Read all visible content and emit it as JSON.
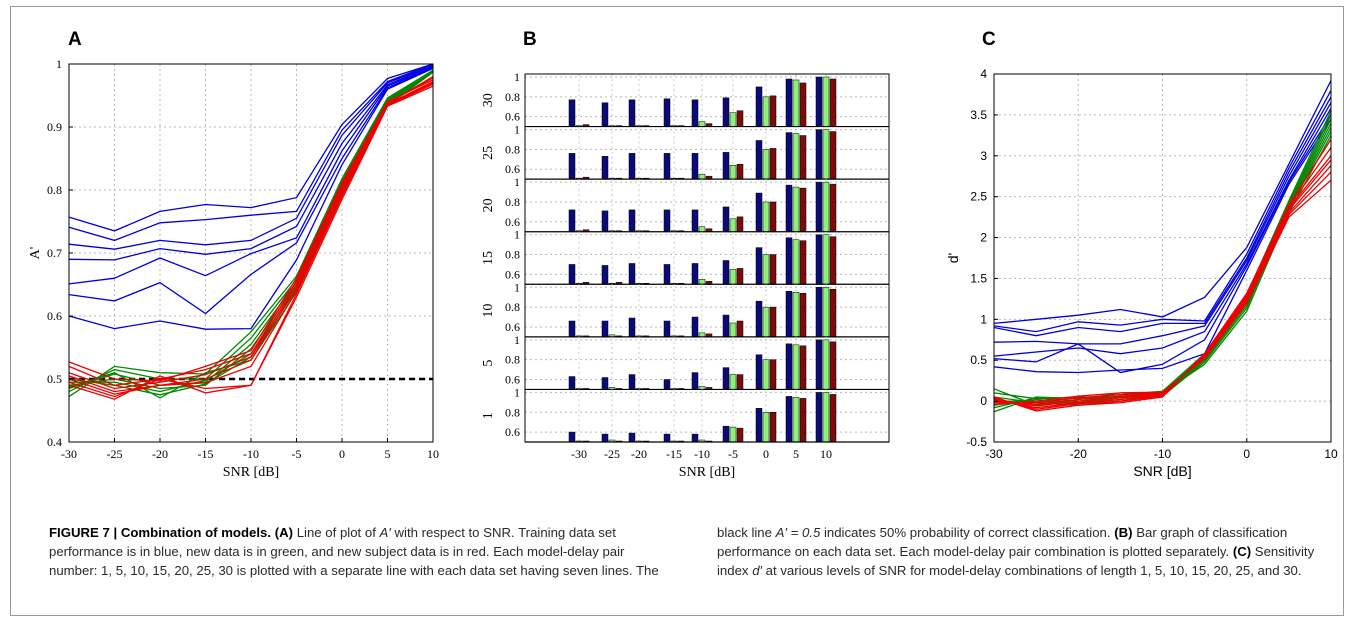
{
  "caption": {
    "figure_label": "FIGURE 7 | Combination of models",
    "a_label": "(A)",
    "a_text_1": " Line of plot of ",
    "a_sym": "A′",
    "a_text_2": " with respect to SNR. Training data set performance is in blue, new data is in green, and new subject data is in red. Each model-delay pair number: 1, 5, 10, 15, 20, 25, 30 is plotted with a separate line with each data set having seven lines. The black line ",
    "a_eq": "A′ = 0.5",
    "a_text_3": " indicates 50% probability of correct classification. ",
    "b_label": "(B)",
    "b_text": " Bar graph of classification performance on each data set. Each model-delay pair combination is plotted separately. ",
    "c_label": "(C)",
    "c_text_1": " Sensitivity index ",
    "c_sym": "d′",
    "c_text_2": " at various levels of SNR for model-delay combinations of length 1, 5, 10, 15, 20, 25, and 30."
  },
  "colors": {
    "training": "#0000dd",
    "new_data": "#008800",
    "new_subject": "#ee0000",
    "bar_blue": "#0b0b78",
    "bar_green": "#8cf07a",
    "bar_red": "#7a0c0c"
  },
  "chart_data": [
    {
      "panel": "A",
      "type": "line",
      "xlabel": "SNR [dB]",
      "ylabel": "A'",
      "x": [
        -30,
        -25,
        -20,
        -15,
        -10,
        -5,
        0,
        5,
        10
      ],
      "xlim": [
        -30,
        10
      ],
      "ylim": [
        0.4,
        1
      ],
      "xticks": [
        -30,
        -25,
        -20,
        -15,
        -10,
        -5,
        0,
        5,
        10
      ],
      "yticks": [
        0.4,
        0.5,
        0.6,
        0.7,
        0.8,
        0.9,
        1
      ],
      "grid": true,
      "reference_line": 0.5,
      "series": [
        {
          "group": "training",
          "values": [
            0.757,
            0.735,
            0.766,
            0.777,
            0.772,
            0.788,
            0.904,
            0.977,
            1.0
          ]
        },
        {
          "group": "training",
          "values": [
            0.741,
            0.72,
            0.748,
            0.753,
            0.76,
            0.766,
            0.895,
            0.972,
            1.0
          ]
        },
        {
          "group": "training",
          "values": [
            0.714,
            0.706,
            0.72,
            0.713,
            0.72,
            0.755,
            0.887,
            0.97,
            0.998
          ]
        },
        {
          "group": "training",
          "values": [
            0.69,
            0.689,
            0.707,
            0.698,
            0.707,
            0.742,
            0.874,
            0.967,
            0.997
          ]
        },
        {
          "group": "training",
          "values": [
            0.651,
            0.66,
            0.692,
            0.664,
            0.699,
            0.724,
            0.862,
            0.965,
            0.995
          ]
        },
        {
          "group": "training",
          "values": [
            0.634,
            0.624,
            0.653,
            0.604,
            0.666,
            0.716,
            0.85,
            0.962,
            0.994
          ]
        },
        {
          "group": "training",
          "values": [
            0.6,
            0.58,
            0.592,
            0.579,
            0.58,
            0.689,
            0.84,
            0.96,
            0.993
          ]
        },
        {
          "group": "new_data",
          "values": [
            0.472,
            0.52,
            0.51,
            0.508,
            0.575,
            0.663,
            0.818,
            0.946,
            0.99
          ]
        },
        {
          "group": "new_data",
          "values": [
            0.48,
            0.515,
            0.5,
            0.5,
            0.565,
            0.658,
            0.814,
            0.944,
            0.99
          ]
        },
        {
          "group": "new_data",
          "values": [
            0.485,
            0.508,
            0.49,
            0.495,
            0.555,
            0.654,
            0.81,
            0.942,
            0.989
          ]
        },
        {
          "group": "new_data",
          "values": [
            0.49,
            0.5,
            0.485,
            0.49,
            0.548,
            0.65,
            0.806,
            0.94,
            0.989
          ]
        },
        {
          "group": "new_data",
          "values": [
            0.495,
            0.495,
            0.48,
            0.498,
            0.54,
            0.646,
            0.802,
            0.938,
            0.988
          ]
        },
        {
          "group": "new_data",
          "values": [
            0.5,
            0.49,
            0.475,
            0.492,
            0.535,
            0.642,
            0.798,
            0.936,
            0.988
          ]
        },
        {
          "group": "new_data",
          "values": [
            0.487,
            0.51,
            0.47,
            0.51,
            0.53,
            0.638,
            0.794,
            0.934,
            0.987
          ]
        },
        {
          "group": "new_subject",
          "values": [
            0.527,
            0.5,
            0.497,
            0.52,
            0.545,
            0.66,
            0.812,
            0.94,
            0.975
          ]
        },
        {
          "group": "new_subject",
          "values": [
            0.52,
            0.49,
            0.5,
            0.515,
            0.54,
            0.655,
            0.808,
            0.938,
            0.978
          ]
        },
        {
          "group": "new_subject",
          "values": [
            0.51,
            0.485,
            0.495,
            0.507,
            0.535,
            0.65,
            0.805,
            0.937,
            0.98
          ]
        },
        {
          "group": "new_subject",
          "values": [
            0.505,
            0.48,
            0.49,
            0.5,
            0.53,
            0.645,
            0.8,
            0.936,
            0.972
          ]
        },
        {
          "group": "new_subject",
          "values": [
            0.5,
            0.476,
            0.49,
            0.494,
            0.52,
            0.64,
            0.795,
            0.935,
            0.97
          ]
        },
        {
          "group": "new_subject",
          "values": [
            0.495,
            0.472,
            0.5,
            0.485,
            0.49,
            0.635,
            0.79,
            0.934,
            0.968
          ]
        },
        {
          "group": "new_subject",
          "values": [
            0.49,
            0.468,
            0.505,
            0.478,
            0.49,
            0.63,
            0.785,
            0.933,
            0.965
          ]
        }
      ]
    },
    {
      "panel": "B",
      "type": "bar",
      "xlabel": "SNR [dB]",
      "x": [
        -30,
        -25,
        -20,
        -15,
        -10,
        -5,
        0,
        5,
        10
      ],
      "xticks": [
        "-30",
        "-25",
        "-20",
        "-15",
        "-10",
        "-5",
        "0",
        "5",
        "10"
      ],
      "yticks": [
        "1",
        "0.8",
        "0.6"
      ],
      "ylim": [
        0.5,
        1
      ],
      "row_labels": [
        "30",
        "25",
        "20",
        "15",
        "10",
        "5",
        "1"
      ],
      "series_groups": [
        "training",
        "new_data",
        "new_subject"
      ],
      "rows": [
        {
          "label": "30",
          "training": [
            0.77,
            0.74,
            0.77,
            0.78,
            0.77,
            0.79,
            0.9,
            0.98,
            1.0
          ],
          "new_data": [
            0.5,
            0.5,
            0.5,
            0.5,
            0.55,
            0.64,
            0.8,
            0.97,
            1.0
          ],
          "new_subject": [
            0.52,
            0.5,
            0.5,
            0.51,
            0.53,
            0.66,
            0.81,
            0.94,
            0.98
          ]
        },
        {
          "label": "25",
          "training": [
            0.76,
            0.73,
            0.76,
            0.76,
            0.76,
            0.77,
            0.89,
            0.97,
            1.0
          ],
          "new_data": [
            0.5,
            0.5,
            0.5,
            0.5,
            0.55,
            0.64,
            0.8,
            0.96,
            1.0
          ],
          "new_subject": [
            0.52,
            0.5,
            0.5,
            0.51,
            0.53,
            0.65,
            0.81,
            0.94,
            0.98
          ]
        },
        {
          "label": "20",
          "training": [
            0.72,
            0.71,
            0.72,
            0.72,
            0.72,
            0.75,
            0.89,
            0.97,
            1.0
          ],
          "new_data": [
            0.5,
            0.5,
            0.5,
            0.5,
            0.55,
            0.63,
            0.8,
            0.95,
            1.0
          ],
          "new_subject": [
            0.52,
            0.5,
            0.5,
            0.51,
            0.53,
            0.65,
            0.8,
            0.94,
            0.98
          ]
        },
        {
          "label": "15",
          "training": [
            0.7,
            0.69,
            0.71,
            0.7,
            0.71,
            0.74,
            0.87,
            0.97,
            1.0
          ],
          "new_data": [
            0.5,
            0.5,
            0.5,
            0.5,
            0.55,
            0.65,
            0.8,
            0.95,
            1.0
          ],
          "new_subject": [
            0.52,
            0.52,
            0.5,
            0.51,
            0.53,
            0.66,
            0.8,
            0.94,
            0.98
          ]
        },
        {
          "label": "10",
          "training": [
            0.66,
            0.66,
            0.69,
            0.66,
            0.7,
            0.72,
            0.86,
            0.96,
            1.0
          ],
          "new_data": [
            0.5,
            0.52,
            0.5,
            0.5,
            0.54,
            0.64,
            0.8,
            0.95,
            1.0
          ],
          "new_subject": [
            0.5,
            0.5,
            0.5,
            0.5,
            0.53,
            0.66,
            0.8,
            0.94,
            0.98
          ]
        },
        {
          "label": "5",
          "training": [
            0.63,
            0.62,
            0.65,
            0.6,
            0.67,
            0.72,
            0.85,
            0.96,
            1.0
          ],
          "new_data": [
            0.5,
            0.52,
            0.5,
            0.5,
            0.53,
            0.65,
            0.8,
            0.95,
            1.0
          ],
          "new_subject": [
            0.5,
            0.5,
            0.5,
            0.5,
            0.52,
            0.65,
            0.8,
            0.94,
            0.98
          ]
        },
        {
          "label": "1",
          "training": [
            0.6,
            0.58,
            0.59,
            0.58,
            0.58,
            0.66,
            0.84,
            0.96,
            1.0
          ],
          "new_data": [
            0.5,
            0.52,
            0.5,
            0.5,
            0.52,
            0.65,
            0.8,
            0.95,
            1.0
          ],
          "new_subject": [
            0.5,
            0.5,
            0.5,
            0.5,
            0.5,
            0.64,
            0.8,
            0.94,
            0.98
          ]
        }
      ]
    },
    {
      "panel": "C",
      "type": "line",
      "xlabel": "SNR [dB]",
      "ylabel": "d'",
      "x": [
        -30,
        -25,
        -20,
        -15,
        -10,
        -5,
        0,
        5,
        10
      ],
      "xlim": [
        -30,
        10
      ],
      "ylim": [
        -0.5,
        4
      ],
      "xticks": [
        -30,
        -20,
        -10,
        0,
        10
      ],
      "yticks": [
        -0.5,
        0,
        0.5,
        1,
        1.5,
        2,
        2.5,
        3,
        3.5,
        4
      ],
      "grid": true,
      "series": [
        {
          "group": "training",
          "values": [
            0.95,
            1.0,
            1.05,
            1.12,
            1.03,
            1.27,
            1.88,
            2.9,
            3.92
          ]
        },
        {
          "group": "training",
          "values": [
            0.92,
            0.85,
            0.97,
            0.93,
            1.0,
            0.98,
            1.8,
            2.85,
            3.8
          ]
        },
        {
          "group": "training",
          "values": [
            0.9,
            0.8,
            0.9,
            0.85,
            0.95,
            0.95,
            1.75,
            2.8,
            3.72
          ]
        },
        {
          "group": "training",
          "values": [
            0.72,
            0.73,
            0.7,
            0.7,
            0.8,
            0.92,
            1.72,
            2.75,
            3.65
          ]
        },
        {
          "group": "training",
          "values": [
            0.55,
            0.6,
            0.65,
            0.58,
            0.65,
            0.85,
            1.68,
            2.7,
            3.58
          ]
        },
        {
          "group": "training",
          "values": [
            0.52,
            0.48,
            0.7,
            0.35,
            0.45,
            0.75,
            1.65,
            2.68,
            3.5
          ]
        },
        {
          "group": "training",
          "values": [
            0.42,
            0.36,
            0.35,
            0.38,
            0.4,
            0.58,
            1.6,
            2.65,
            3.45
          ]
        },
        {
          "group": "new_data",
          "values": [
            -0.13,
            0.05,
            0.03,
            0.08,
            0.12,
            0.58,
            1.3,
            2.45,
            3.55
          ]
        },
        {
          "group": "new_data",
          "values": [
            -0.08,
            0.04,
            0.0,
            0.06,
            0.1,
            0.56,
            1.27,
            2.42,
            3.5
          ]
        },
        {
          "group": "new_data",
          "values": [
            -0.05,
            0.02,
            -0.02,
            0.04,
            0.09,
            0.54,
            1.24,
            2.4,
            3.45
          ]
        },
        {
          "group": "new_data",
          "values": [
            0.0,
            0.0,
            -0.03,
            0.02,
            0.08,
            0.52,
            1.2,
            2.38,
            3.4
          ]
        },
        {
          "group": "new_data",
          "values": [
            0.05,
            -0.02,
            -0.05,
            0.0,
            0.07,
            0.5,
            1.17,
            2.36,
            3.35
          ]
        },
        {
          "group": "new_data",
          "values": [
            0.1,
            0.03,
            0.05,
            0.05,
            0.06,
            0.48,
            1.14,
            2.34,
            3.3
          ]
        },
        {
          "group": "new_data",
          "values": [
            0.15,
            -0.05,
            0.02,
            0.1,
            0.1,
            0.45,
            1.1,
            2.3,
            3.25
          ]
        },
        {
          "group": "new_subject",
          "values": [
            0.05,
            -0.12,
            -0.05,
            -0.02,
            0.05,
            0.58,
            1.32,
            2.4,
            3.2
          ]
        },
        {
          "group": "new_subject",
          "values": [
            0.04,
            -0.1,
            -0.03,
            0.0,
            0.06,
            0.57,
            1.3,
            2.38,
            3.1
          ]
        },
        {
          "group": "new_subject",
          "values": [
            0.03,
            -0.08,
            -0.02,
            0.02,
            0.07,
            0.56,
            1.28,
            2.36,
            3.0
          ]
        },
        {
          "group": "new_subject",
          "values": [
            0.02,
            -0.06,
            0.0,
            0.04,
            0.08,
            0.55,
            1.26,
            2.34,
            2.95
          ]
        },
        {
          "group": "new_subject",
          "values": [
            0.0,
            -0.04,
            0.02,
            0.06,
            0.09,
            0.54,
            1.24,
            2.3,
            2.88
          ]
        },
        {
          "group": "new_subject",
          "values": [
            -0.02,
            -0.02,
            0.04,
            0.08,
            0.1,
            0.53,
            1.22,
            2.28,
            2.8
          ]
        },
        {
          "group": "new_subject",
          "values": [
            -0.04,
            0.0,
            0.06,
            0.1,
            0.11,
            0.52,
            1.2,
            2.25,
            2.7
          ]
        }
      ]
    }
  ]
}
